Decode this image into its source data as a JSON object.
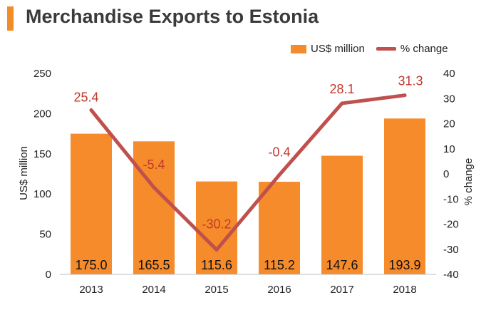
{
  "title": "Merchandise Exports to Estonia",
  "colors": {
    "accent": "#f28c28",
    "bar": "#f68b2c",
    "line": "#c0504d",
    "line_label": "#c0392b",
    "text": "#222222"
  },
  "chart_data": {
    "type": "bar",
    "title": "Merchandise Exports to Estonia",
    "categories": [
      "2013",
      "2014",
      "2015",
      "2016",
      "2017",
      "2018"
    ],
    "series": [
      {
        "name": "US$ million",
        "type": "bar",
        "axis": "left",
        "values": [
          175.0,
          165.5,
          115.6,
          115.2,
          147.6,
          193.9
        ],
        "labels": [
          "175.0",
          "165.5",
          "115.6",
          "115.2",
          "147.6",
          "193.9"
        ]
      },
      {
        "name": "% change",
        "type": "line",
        "axis": "right",
        "values": [
          25.4,
          -5.4,
          -30.2,
          -0.4,
          28.1,
          31.3
        ],
        "labels": [
          "25.4",
          "-5.4",
          "-30.2",
          "-0.4",
          "28.1",
          "31.3"
        ]
      }
    ],
    "ylabel": "US$ million",
    "ylabel_right": "% change",
    "ylim": [
      0,
      250
    ],
    "ylim_right": [
      -40,
      40
    ],
    "yticks": [
      "0",
      "50",
      "100",
      "150",
      "200",
      "250"
    ],
    "yticks_right": [
      "-40",
      "-30",
      "-20",
      "-10",
      "0",
      "10",
      "20",
      "30",
      "40"
    ],
    "legend": "top-right",
    "grid": false
  }
}
